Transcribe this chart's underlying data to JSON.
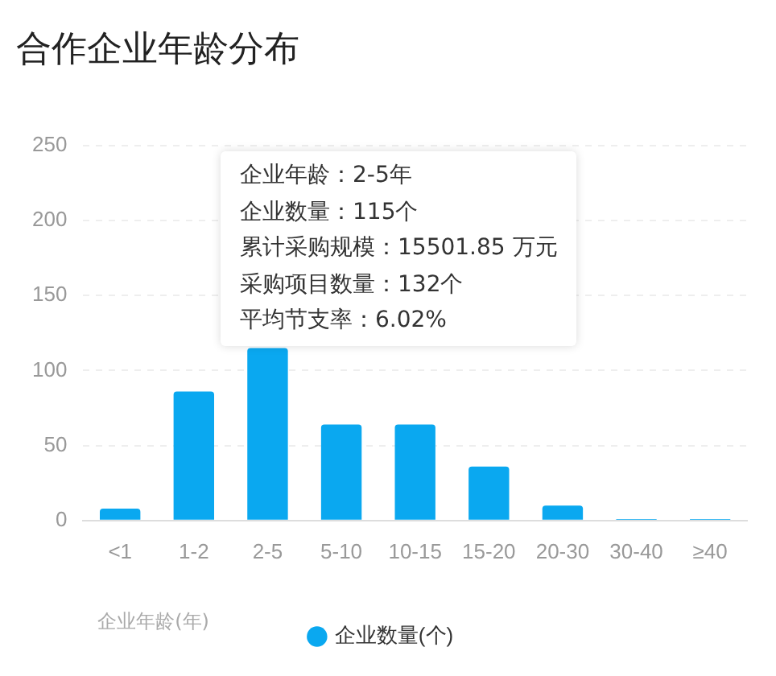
{
  "chart_data": {
    "type": "bar",
    "title": "合作企业年龄分布",
    "xlabel": "企业年龄(年)",
    "categories": [
      "<1",
      "1-2",
      "2-5",
      "5-10",
      "10-15",
      "15-20",
      "20-30",
      "30-40",
      "≥40"
    ],
    "series": [
      {
        "name": "企业数量(个)",
        "color": "#0aa8f0",
        "values": [
          8,
          86,
          115,
          64,
          64,
          36,
          10,
          1,
          1
        ]
      }
    ],
    "ylim": [
      0,
      250
    ],
    "yticks": [
      0,
      50,
      100,
      150,
      200,
      250
    ],
    "grid": "y",
    "legend": "bottom",
    "annotations": [
      "企业年龄：2-5年",
      "企业数量：115个",
      "累计采购规模：15501.85 万元",
      "采购项目数量：132个",
      "平均节支率：6.02%"
    ]
  }
}
